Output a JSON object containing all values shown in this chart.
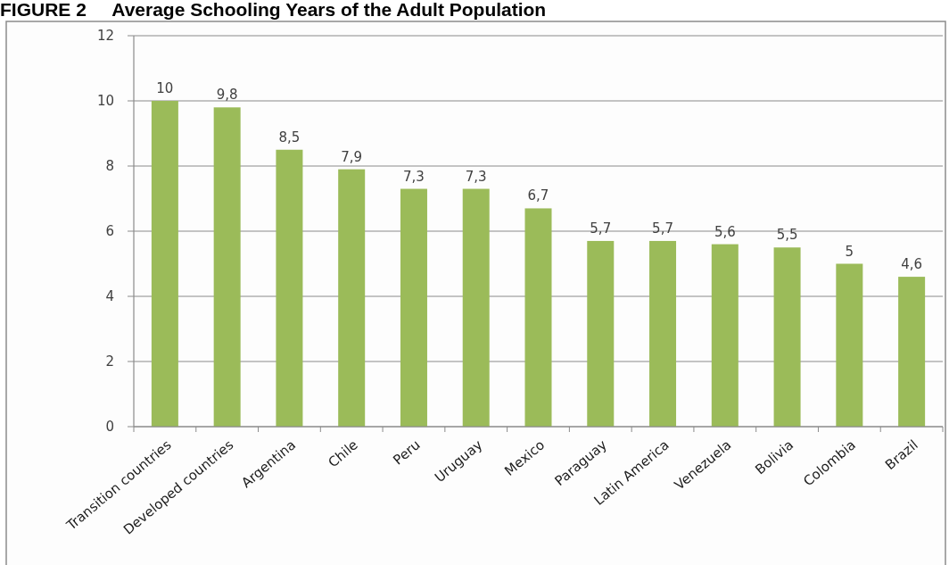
{
  "chart_data": {
    "type": "bar",
    "title": "FIGURE 2     Average Schooling Years of the Adult Population",
    "categories": [
      "Transition countries",
      "Developed countries",
      "Argentina",
      "Chile",
      "Peru",
      "Uruguay",
      "Mexico",
      "Paraguay",
      "Latin America",
      "Venezuela",
      "Bolivia",
      "Colombia",
      "Brazil"
    ],
    "values": [
      10,
      9.8,
      8.5,
      7.9,
      7.3,
      7.3,
      6.7,
      5.7,
      5.7,
      5.6,
      5.5,
      5,
      4.6
    ],
    "value_labels": [
      "10",
      "9,8",
      "8,5",
      "7,9",
      "7,3",
      "7,3",
      "6,7",
      "5,7",
      "5,7",
      "5,6",
      "5,5",
      "5",
      "4,6"
    ],
    "color": "#9bbb59",
    "ylim": [
      0,
      12
    ],
    "yticks": [
      0,
      2,
      4,
      6,
      8,
      10,
      12
    ],
    "grid": "y"
  }
}
